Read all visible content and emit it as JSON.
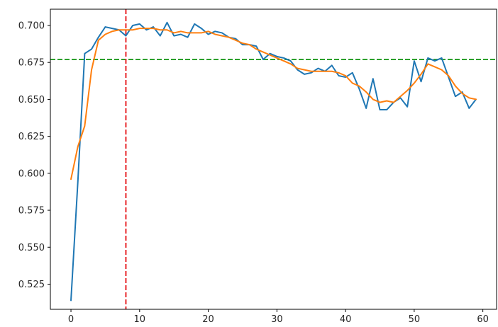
{
  "chart_data": {
    "type": "line",
    "title": "",
    "xlabel": "",
    "ylabel": "",
    "xlim": [
      -3,
      62
    ],
    "ylim": [
      0.508,
      0.711
    ],
    "x_ticks": [
      0,
      10,
      20,
      30,
      40,
      50,
      60
    ],
    "y_ticks": [
      0.525,
      0.55,
      0.575,
      0.6,
      0.625,
      0.65,
      0.675,
      0.7
    ],
    "x_tick_labels": [
      "0",
      "10",
      "20",
      "30",
      "40",
      "50",
      "60"
    ],
    "y_tick_labels": [
      "0.525",
      "0.550",
      "0.575",
      "0.600",
      "0.625",
      "0.650",
      "0.675",
      "0.700"
    ],
    "grid": false,
    "series": [
      {
        "color": "#1f77b4",
        "x": [
          0,
          1,
          2,
          3,
          4,
          5,
          6,
          7,
          8,
          9,
          10,
          11,
          12,
          13,
          14,
          15,
          16,
          17,
          18,
          19,
          20,
          21,
          22,
          23,
          24,
          25,
          26,
          27,
          28,
          29,
          30,
          31,
          32,
          33,
          34,
          35,
          36,
          37,
          38,
          39,
          40,
          41,
          42,
          43,
          44,
          45,
          46,
          47,
          48,
          49,
          50,
          51,
          52,
          53,
          54,
          55,
          56,
          57,
          58,
          59
        ],
        "values": [
          0.514,
          0.594,
          0.681,
          0.684,
          0.692,
          0.699,
          0.698,
          0.697,
          0.693,
          0.7,
          0.701,
          0.697,
          0.699,
          0.693,
          0.702,
          0.693,
          0.694,
          0.692,
          0.701,
          0.698,
          0.694,
          0.696,
          0.695,
          0.692,
          0.691,
          0.687,
          0.687,
          0.686,
          0.677,
          0.681,
          0.679,
          0.678,
          0.676,
          0.67,
          0.667,
          0.668,
          0.671,
          0.669,
          0.673,
          0.666,
          0.665,
          0.668,
          0.657,
          0.644,
          0.664,
          0.643,
          0.643,
          0.648,
          0.651,
          0.645,
          0.676,
          0.662,
          0.678,
          0.676,
          0.678,
          0.665,
          0.652,
          0.655,
          0.644,
          0.65
        ]
      },
      {
        "color": "#ff7f0e",
        "x": [
          0,
          1,
          2,
          3,
          4,
          5,
          6,
          7,
          8,
          9,
          10,
          11,
          12,
          13,
          14,
          15,
          16,
          17,
          18,
          19,
          20,
          21,
          22,
          23,
          24,
          25,
          26,
          27,
          28,
          29,
          30,
          31,
          32,
          33,
          34,
          35,
          36,
          37,
          38,
          39,
          40,
          41,
          42,
          43,
          44,
          45,
          46,
          47,
          48,
          49,
          50,
          51,
          52,
          53,
          54,
          55,
          56,
          57,
          58,
          59
        ],
        "values": [
          0.596,
          0.618,
          0.632,
          0.67,
          0.69,
          0.694,
          0.696,
          0.697,
          0.697,
          0.697,
          0.698,
          0.698,
          0.698,
          0.697,
          0.697,
          0.695,
          0.696,
          0.695,
          0.695,
          0.695,
          0.696,
          0.694,
          0.693,
          0.692,
          0.69,
          0.688,
          0.687,
          0.684,
          0.682,
          0.68,
          0.678,
          0.676,
          0.674,
          0.671,
          0.67,
          0.669,
          0.669,
          0.669,
          0.669,
          0.668,
          0.666,
          0.661,
          0.659,
          0.655,
          0.65,
          0.648,
          0.649,
          0.648,
          0.652,
          0.656,
          0.661,
          0.667,
          0.674,
          0.672,
          0.67,
          0.666,
          0.659,
          0.654,
          0.651,
          0.65
        ]
      }
    ],
    "reference_lines": [
      {
        "orientation": "horizontal",
        "value": 0.677,
        "color": "#2ca02c",
        "style": "dashed"
      },
      {
        "orientation": "vertical",
        "value": 8,
        "color": "#e8262a",
        "style": "dashed"
      }
    ]
  }
}
